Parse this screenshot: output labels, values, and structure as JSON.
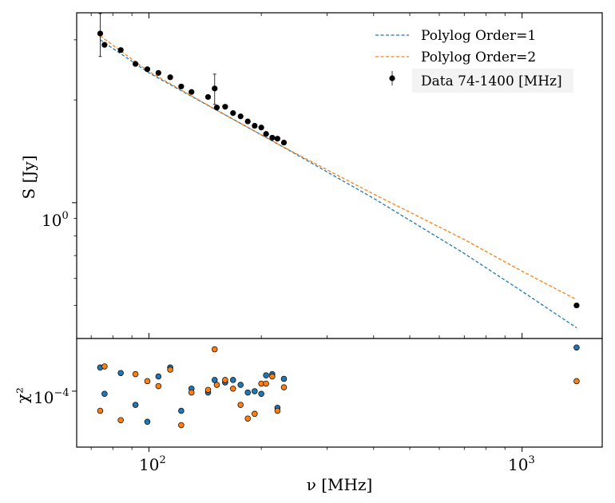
{
  "chart_data": [
    {
      "type": "scatter",
      "panel": "main",
      "xscale": "log",
      "yscale": "log",
      "xlim": [
        64,
        1640
      ],
      "ylim": [
        0.4,
        3.6
      ],
      "ylabel": "S [Jy]",
      "xlabel": "",
      "y_tick_labels": [
        {
          "value": 1.0,
          "base": "10",
          "exp": "0"
        }
      ],
      "grid": false,
      "legend_position": "top-right",
      "series": [
        {
          "name": "Polylog Order=1",
          "kind": "dashed-line",
          "color": "#1f77b4",
          "points": [
            [
              74,
              3.0
            ],
            [
              100,
              2.4
            ],
            [
              150,
              1.88
            ],
            [
              228,
              1.46
            ],
            [
              400,
              1.03
            ],
            [
              700,
              0.71
            ],
            [
              1000,
              0.55
            ],
            [
              1400,
              0.43
            ]
          ]
        },
        {
          "name": "Polylog Order=2",
          "kind": "dashed-line",
          "color": "#ff7f0e",
          "points": [
            [
              74,
              3.08
            ],
            [
              100,
              2.42
            ],
            [
              150,
              1.88
            ],
            [
              228,
              1.46
            ],
            [
              400,
              1.06
            ],
            [
              700,
              0.78
            ],
            [
              1000,
              0.63
            ],
            [
              1400,
              0.52
            ]
          ]
        },
        {
          "name": "Data 74-1400 [MHz]",
          "kind": "errorbar-points",
          "color": "#000000",
          "points": [
            {
              "x": 74,
              "y": 3.13,
              "err": 0.45
            },
            {
              "x": 76,
              "y": 2.9
            },
            {
              "x": 84,
              "y": 2.8
            },
            {
              "x": 92,
              "y": 2.55
            },
            {
              "x": 99,
              "y": 2.46
            },
            {
              "x": 106,
              "y": 2.4
            },
            {
              "x": 114,
              "y": 2.33
            },
            {
              "x": 122,
              "y": 2.19
            },
            {
              "x": 130,
              "y": 2.11
            },
            {
              "x": 144,
              "y": 2.04
            },
            {
              "x": 150,
              "y": 2.16,
              "err": 0.22
            },
            {
              "x": 152,
              "y": 1.9
            },
            {
              "x": 160,
              "y": 1.91
            },
            {
              "x": 168,
              "y": 1.83
            },
            {
              "x": 176,
              "y": 1.79
            },
            {
              "x": 184,
              "y": 1.73
            },
            {
              "x": 192,
              "y": 1.68
            },
            {
              "x": 200,
              "y": 1.66
            },
            {
              "x": 206,
              "y": 1.59
            },
            {
              "x": 214,
              "y": 1.55
            },
            {
              "x": 221,
              "y": 1.54
            },
            {
              "x": 230,
              "y": 1.5
            },
            {
              "x": 1400,
              "y": 0.5
            }
          ]
        }
      ]
    },
    {
      "type": "scatter",
      "panel": "residual",
      "xscale": "log",
      "yscale": "log",
      "xlim": [
        64,
        1640
      ],
      "ylim": [
        0.65,
        1.5
      ],
      "xlabel": "ν [MHz]",
      "ylabel": "χ²",
      "x_tick_labels": [
        {
          "value": 100,
          "base": "10",
          "exp": "2"
        },
        {
          "value": 1000,
          "base": "10",
          "exp": "3"
        }
      ],
      "y_tick_labels": [
        {
          "value": 1.0,
          "base": "10",
          "exp": "−4"
        }
      ],
      "series": [
        {
          "color": "#1f77b4",
          "points": [
            [
              74,
              1.2
            ],
            [
              76,
              0.98
            ],
            [
              84,
              1.15
            ],
            [
              92,
              0.9
            ],
            [
              99,
              0.79
            ],
            [
              106,
              1.12
            ],
            [
              114,
              1.2
            ],
            [
              122,
              0.86
            ],
            [
              130,
              1.02
            ],
            [
              144,
              0.99
            ],
            [
              150,
              1.09
            ],
            [
              160,
              1.07
            ],
            [
              168,
              1.09
            ],
            [
              176,
              1.05
            ],
            [
              184,
              0.99
            ],
            [
              192,
              1.0
            ],
            [
              200,
              0.98
            ],
            [
              206,
              1.13
            ],
            [
              214,
              1.14
            ],
            [
              221,
              0.88
            ],
            [
              230,
              1.1
            ],
            [
              1400,
              1.4
            ]
          ]
        },
        {
          "color": "#ff7f0e",
          "points": [
            [
              74,
              0.86
            ],
            [
              76,
              1.21
            ],
            [
              84,
              0.8
            ],
            [
              92,
              1.14
            ],
            [
              99,
              1.08
            ],
            [
              106,
              1.04
            ],
            [
              114,
              1.18
            ],
            [
              122,
              0.77
            ],
            [
              130,
              0.99
            ],
            [
              144,
              1.01
            ],
            [
              150,
              1.38
            ],
            [
              152,
              1.05
            ],
            [
              160,
              1.09
            ],
            [
              168,
              1.02
            ],
            [
              176,
              0.9
            ],
            [
              184,
              0.81
            ],
            [
              192,
              0.84
            ],
            [
              200,
              1.06
            ],
            [
              206,
              1.06
            ],
            [
              214,
              1.12
            ],
            [
              221,
              0.86
            ],
            [
              230,
              1.03
            ],
            [
              1400,
              1.08
            ]
          ]
        }
      ]
    }
  ]
}
